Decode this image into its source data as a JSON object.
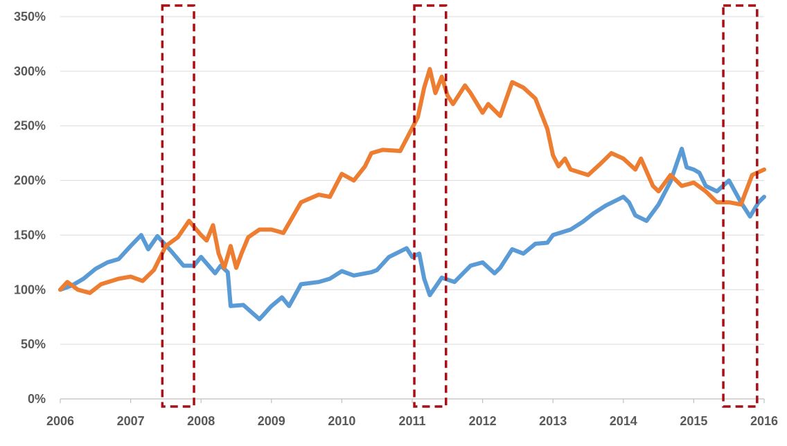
{
  "chart_data": {
    "type": "line",
    "title": "",
    "xlabel": "",
    "ylabel": "",
    "xlim": [
      2006,
      2016
    ],
    "ylim": [
      0,
      350
    ],
    "x_ticks": [
      2006,
      2007,
      2008,
      2009,
      2010,
      2011,
      2012,
      2013,
      2014,
      2015,
      2016
    ],
    "x_tick_labels": [
      "2006",
      "2007",
      "2008",
      "2009",
      "2010",
      "2011",
      "2012",
      "2013",
      "2014",
      "2015",
      "2016"
    ],
    "y_ticks": [
      0,
      50,
      100,
      150,
      200,
      250,
      300,
      350
    ],
    "y_tick_labels": [
      "0%",
      "50%",
      "100%",
      "150%",
      "200%",
      "250%",
      "300%",
      "350%"
    ],
    "grid": "horizontal",
    "legend": "none",
    "highlight_periods": [
      {
        "x0": 2007.45,
        "x1": 2007.9
      },
      {
        "x0": 2011.03,
        "x1": 2011.48
      },
      {
        "x0": 2015.42,
        "x1": 2015.9
      }
    ],
    "series": [
      {
        "color": "#5b9bd5",
        "x": [
          2006.0,
          2006.17,
          2006.33,
          2006.5,
          2006.67,
          2006.83,
          2007.0,
          2007.15,
          2007.25,
          2007.38,
          2007.58,
          2007.75,
          2007.9,
          2008.0,
          2008.2,
          2008.28,
          2008.38,
          2008.42,
          2008.6,
          2008.83,
          2009.0,
          2009.15,
          2009.25,
          2009.42,
          2009.67,
          2009.83,
          2010.0,
          2010.17,
          2010.42,
          2010.5,
          2010.67,
          2010.92,
          2011.0,
          2011.1,
          2011.17,
          2011.25,
          2011.42,
          2011.6,
          2011.83,
          2012.0,
          2012.17,
          2012.25,
          2012.42,
          2012.58,
          2012.75,
          2012.92,
          2013.0,
          2013.25,
          2013.42,
          2013.58,
          2013.75,
          2014.0,
          2014.08,
          2014.17,
          2014.33,
          2014.5,
          2014.67,
          2014.83,
          2014.9,
          2015.0,
          2015.08,
          2015.17,
          2015.33,
          2015.5,
          2015.67,
          2015.8,
          2015.92,
          2016.0
        ],
        "y": [
          100,
          104,
          110,
          119,
          125,
          128,
          140,
          150,
          137,
          149,
          135,
          122,
          122,
          130,
          115,
          122,
          116,
          85,
          86,
          73,
          85,
          93,
          85,
          105,
          107,
          110,
          117,
          113,
          116,
          118,
          130,
          138,
          130,
          133,
          110,
          95,
          111,
          107,
          122,
          125,
          115,
          120,
          137,
          133,
          142,
          143,
          150,
          155,
          162,
          170,
          177,
          185,
          180,
          168,
          163,
          178,
          199,
          229,
          212,
          210,
          207,
          195,
          190,
          200,
          180,
          167,
          180,
          185
        ]
      },
      {
        "color": "#ed7d31",
        "x": [
          2006.0,
          2006.1,
          2006.25,
          2006.42,
          2006.58,
          2006.83,
          2007.0,
          2007.17,
          2007.33,
          2007.5,
          2007.67,
          2007.83,
          2008.0,
          2008.08,
          2008.17,
          2008.25,
          2008.33,
          2008.42,
          2008.5,
          2008.58,
          2008.67,
          2008.83,
          2009.0,
          2009.17,
          2009.42,
          2009.67,
          2009.83,
          2010.0,
          2010.17,
          2010.33,
          2010.42,
          2010.58,
          2010.83,
          2011.0,
          2011.08,
          2011.17,
          2011.25,
          2011.33,
          2011.42,
          2011.5,
          2011.58,
          2011.75,
          2011.83,
          2012.0,
          2012.08,
          2012.25,
          2012.42,
          2012.58,
          2012.75,
          2012.92,
          2013.0,
          2013.08,
          2013.17,
          2013.25,
          2013.5,
          2013.67,
          2013.83,
          2014.0,
          2014.17,
          2014.25,
          2014.42,
          2014.5,
          2014.67,
          2014.83,
          2015.0,
          2015.17,
          2015.33,
          2015.5,
          2015.67,
          2015.83,
          2016.0
        ],
        "y": [
          100,
          107,
          100,
          97,
          105,
          110,
          112,
          108,
          118,
          140,
          148,
          163,
          150,
          145,
          159,
          133,
          120,
          140,
          120,
          134,
          148,
          155,
          155,
          152,
          180,
          187,
          185,
          206,
          200,
          213,
          225,
          228,
          227,
          248,
          258,
          285,
          302,
          280,
          295,
          278,
          270,
          287,
          280,
          262,
          270,
          259,
          290,
          285,
          275,
          247,
          223,
          213,
          220,
          210,
          205,
          215,
          225,
          220,
          210,
          220,
          195,
          190,
          205,
          195,
          198,
          190,
          180,
          180,
          178,
          205,
          210
        ]
      }
    ]
  }
}
